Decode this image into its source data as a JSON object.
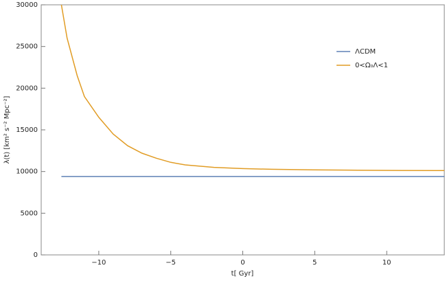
{
  "chart_data": {
    "type": "line",
    "x_label": "t[ Gyr]",
    "y_label": "λ(t) [km² s⁻² Mpc⁻²]",
    "x": [
      -12.6,
      -12.2,
      -11.5,
      -11,
      -10,
      -9,
      -8,
      -7,
      -6,
      -5,
      -4,
      -2,
      0,
      2,
      5,
      8,
      11,
      14
    ],
    "series": [
      {
        "name": "ΛCDM",
        "color": "#5e81b5",
        "values": [
          9400,
          9400,
          9400,
          9400,
          9400,
          9400,
          9400,
          9400,
          9400,
          9400,
          9400,
          9400,
          9400,
          9400,
          9400,
          9400,
          9400,
          9400
        ]
      },
      {
        "name": "0<Ω₀Λ<1",
        "color": "#e19c24",
        "values": [
          30000,
          26000,
          21500,
          19000,
          16500,
          14500,
          13100,
          12200,
          11600,
          11100,
          10800,
          10500,
          10350,
          10270,
          10200,
          10160,
          10130,
          10110
        ]
      }
    ],
    "xlim": [
      -14,
      14
    ],
    "xticks": [
      {
        "value": -10,
        "label": "−10"
      },
      {
        "value": -5,
        "label": "−5"
      },
      0,
      5,
      10
    ],
    "ylim": [
      0,
      30000
    ],
    "yticks": [
      0,
      5000,
      10000,
      15000,
      20000,
      25000,
      30000
    ],
    "legend": "top-right"
  }
}
